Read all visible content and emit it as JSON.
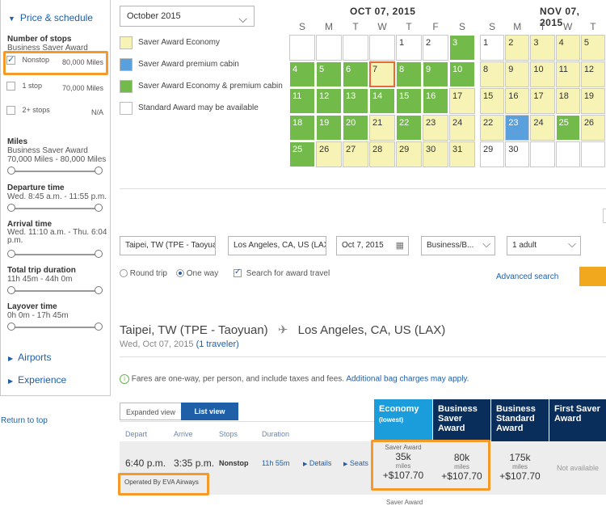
{
  "sidebar": {
    "heading": "Price & schedule",
    "stops_label": "Number of stops",
    "stops_sub": "Business Saver Award",
    "stops": [
      {
        "label": "Nonstop",
        "miles": "80,000 Miles",
        "checked": true
      },
      {
        "label": "1 stop",
        "miles": "70,000 Miles",
        "checked": false
      },
      {
        "label": "2+ stops",
        "miles": "N/A",
        "checked": false
      }
    ],
    "miles_label": "Miles",
    "miles_sub": "Business Saver Award",
    "miles_range": "70,000 Miles - 80,000 Miles",
    "departure_label": "Departure time",
    "departure_range": "Wed. 8:45 a.m. - 11:55 p.m.",
    "arrival_label": "Arrival time",
    "arrival_range": "Wed. 11:10 a.m. - Thu. 6:04",
    "arrival_range2": "p.m.",
    "duration_label": "Total trip duration",
    "duration_range": "11h 45m - 44h 0m",
    "layover_label": "Layover time",
    "layover_range": "0h 0m - 17h 45m",
    "airports": "Airports",
    "experience": "Experience"
  },
  "return_to_top": "Return to top",
  "month_select": "October 2015",
  "legend": [
    {
      "color": "#f6f3b4",
      "label": "Saver Award Economy"
    },
    {
      "color": "#5aa0dc",
      "label": "Saver Award premium cabin"
    },
    {
      "color": "#72bb4a",
      "label": "Saver Award Economy & premium cabin"
    },
    {
      "color": "#ffffff",
      "label": "Standard Award may be available"
    }
  ],
  "cal1": {
    "title": "OCT 07, 2015",
    "dow": [
      "S",
      "M",
      "T",
      "W",
      "T",
      "F",
      "S"
    ],
    "rows": [
      [
        [
          "",
          "w"
        ],
        [
          "",
          "w"
        ],
        [
          "",
          "w"
        ],
        [
          "",
          "w"
        ],
        [
          "1",
          "w"
        ],
        [
          "2",
          "w"
        ],
        [
          "3",
          "g"
        ]
      ],
      [
        [
          "4",
          "g"
        ],
        [
          "5",
          "g"
        ],
        [
          "6",
          "g"
        ],
        [
          "7",
          "ys"
        ],
        [
          "8",
          "g"
        ],
        [
          "9",
          "g"
        ],
        [
          "10",
          "g"
        ]
      ],
      [
        [
          "11",
          "g"
        ],
        [
          "12",
          "g"
        ],
        [
          "13",
          "g"
        ],
        [
          "14",
          "g"
        ],
        [
          "15",
          "g"
        ],
        [
          "16",
          "g"
        ],
        [
          "17",
          "y"
        ]
      ],
      [
        [
          "18",
          "g"
        ],
        [
          "19",
          "g"
        ],
        [
          "20",
          "g"
        ],
        [
          "21",
          "y"
        ],
        [
          "22",
          "g"
        ],
        [
          "23",
          "y"
        ],
        [
          "24",
          "y"
        ]
      ],
      [
        [
          "25",
          "g"
        ],
        [
          "26",
          "y"
        ],
        [
          "27",
          "y"
        ],
        [
          "28",
          "y"
        ],
        [
          "29",
          "y"
        ],
        [
          "30",
          "y"
        ],
        [
          "31",
          "y"
        ]
      ]
    ]
  },
  "cal2": {
    "title": "NOV 07, 2015",
    "dow": [
      "S",
      "M",
      "T",
      "W",
      "T"
    ],
    "rows": [
      [
        [
          "1",
          "w"
        ],
        [
          "2",
          "y"
        ],
        [
          "3",
          "y"
        ],
        [
          "4",
          "y"
        ],
        [
          "5",
          "y"
        ]
      ],
      [
        [
          "8",
          "y"
        ],
        [
          "9",
          "y"
        ],
        [
          "10",
          "y"
        ],
        [
          "11",
          "y"
        ],
        [
          "12",
          "y"
        ]
      ],
      [
        [
          "15",
          "y"
        ],
        [
          "16",
          "y"
        ],
        [
          "17",
          "y"
        ],
        [
          "18",
          "y"
        ],
        [
          "19",
          "y"
        ]
      ],
      [
        [
          "22",
          "y"
        ],
        [
          "23",
          "b"
        ],
        [
          "24",
          "y"
        ],
        [
          "25",
          "g"
        ],
        [
          "26",
          "y"
        ]
      ],
      [
        [
          "29",
          "w"
        ],
        [
          "30",
          "w"
        ],
        [
          "",
          "w"
        ],
        [
          "",
          "w"
        ],
        [
          "",
          "w"
        ]
      ]
    ]
  },
  "form": {
    "from": "Taipei, TW (TPE - Taoyuan",
    "to": "Los Angeles, CA, US (LAX",
    "date": "Oct 7, 2015",
    "cabin": "Business/B...",
    "travelers": "1 adult",
    "round_trip": "Round trip",
    "one_way": "One way",
    "award_check": "Search for award travel",
    "advanced": "Advanced search"
  },
  "results": {
    "origin": "Taipei, TW (TPE - Taoyuan)",
    "destination": "Los Angeles, CA, US (LAX)",
    "date_line": "Wed, Oct 07, 2015",
    "travelers_link": "(1 traveler)",
    "notice": "Fares are one-way, per person, and include taxes and fees.",
    "bag_link": "Additional bag charges may apply.",
    "expanded_view": "Expanded view",
    "list_view": "List view",
    "columns": {
      "depart": "Depart",
      "arrive": "Arrive",
      "stops": "Stops",
      "duration": "Duration"
    },
    "fare_heads": [
      {
        "title": "Economy",
        "sub": "(lowest)",
        "color": "#1c9ddb"
      },
      {
        "title": "Business Saver Award",
        "sub": "",
        "color": "#0a2e5c"
      },
      {
        "title": "Business Standard Award",
        "sub": "",
        "color": "#0a2e5c"
      },
      {
        "title": "First Saver Award",
        "sub": "",
        "color": "#0a2e5c"
      }
    ],
    "flight": {
      "depart": "6:40 p.m.",
      "arrive": "3:35 p.m.",
      "stops": "Nonstop",
      "duration": "11h 55m",
      "details": "Details",
      "seats": "Seats",
      "operated": "Operated By EVA Airways"
    },
    "fares": [
      {
        "label": "Saver Award",
        "miles": "35k",
        "unit": "miles",
        "price": "+$107.70"
      },
      {
        "label": "",
        "miles": "80k",
        "unit": "miles",
        "price": "+$107.70"
      },
      {
        "label": "",
        "miles": "175k",
        "unit": "miles",
        "price": "+$107.70"
      }
    ],
    "not_available": "Not available",
    "bottom_label": "Saver Award"
  }
}
